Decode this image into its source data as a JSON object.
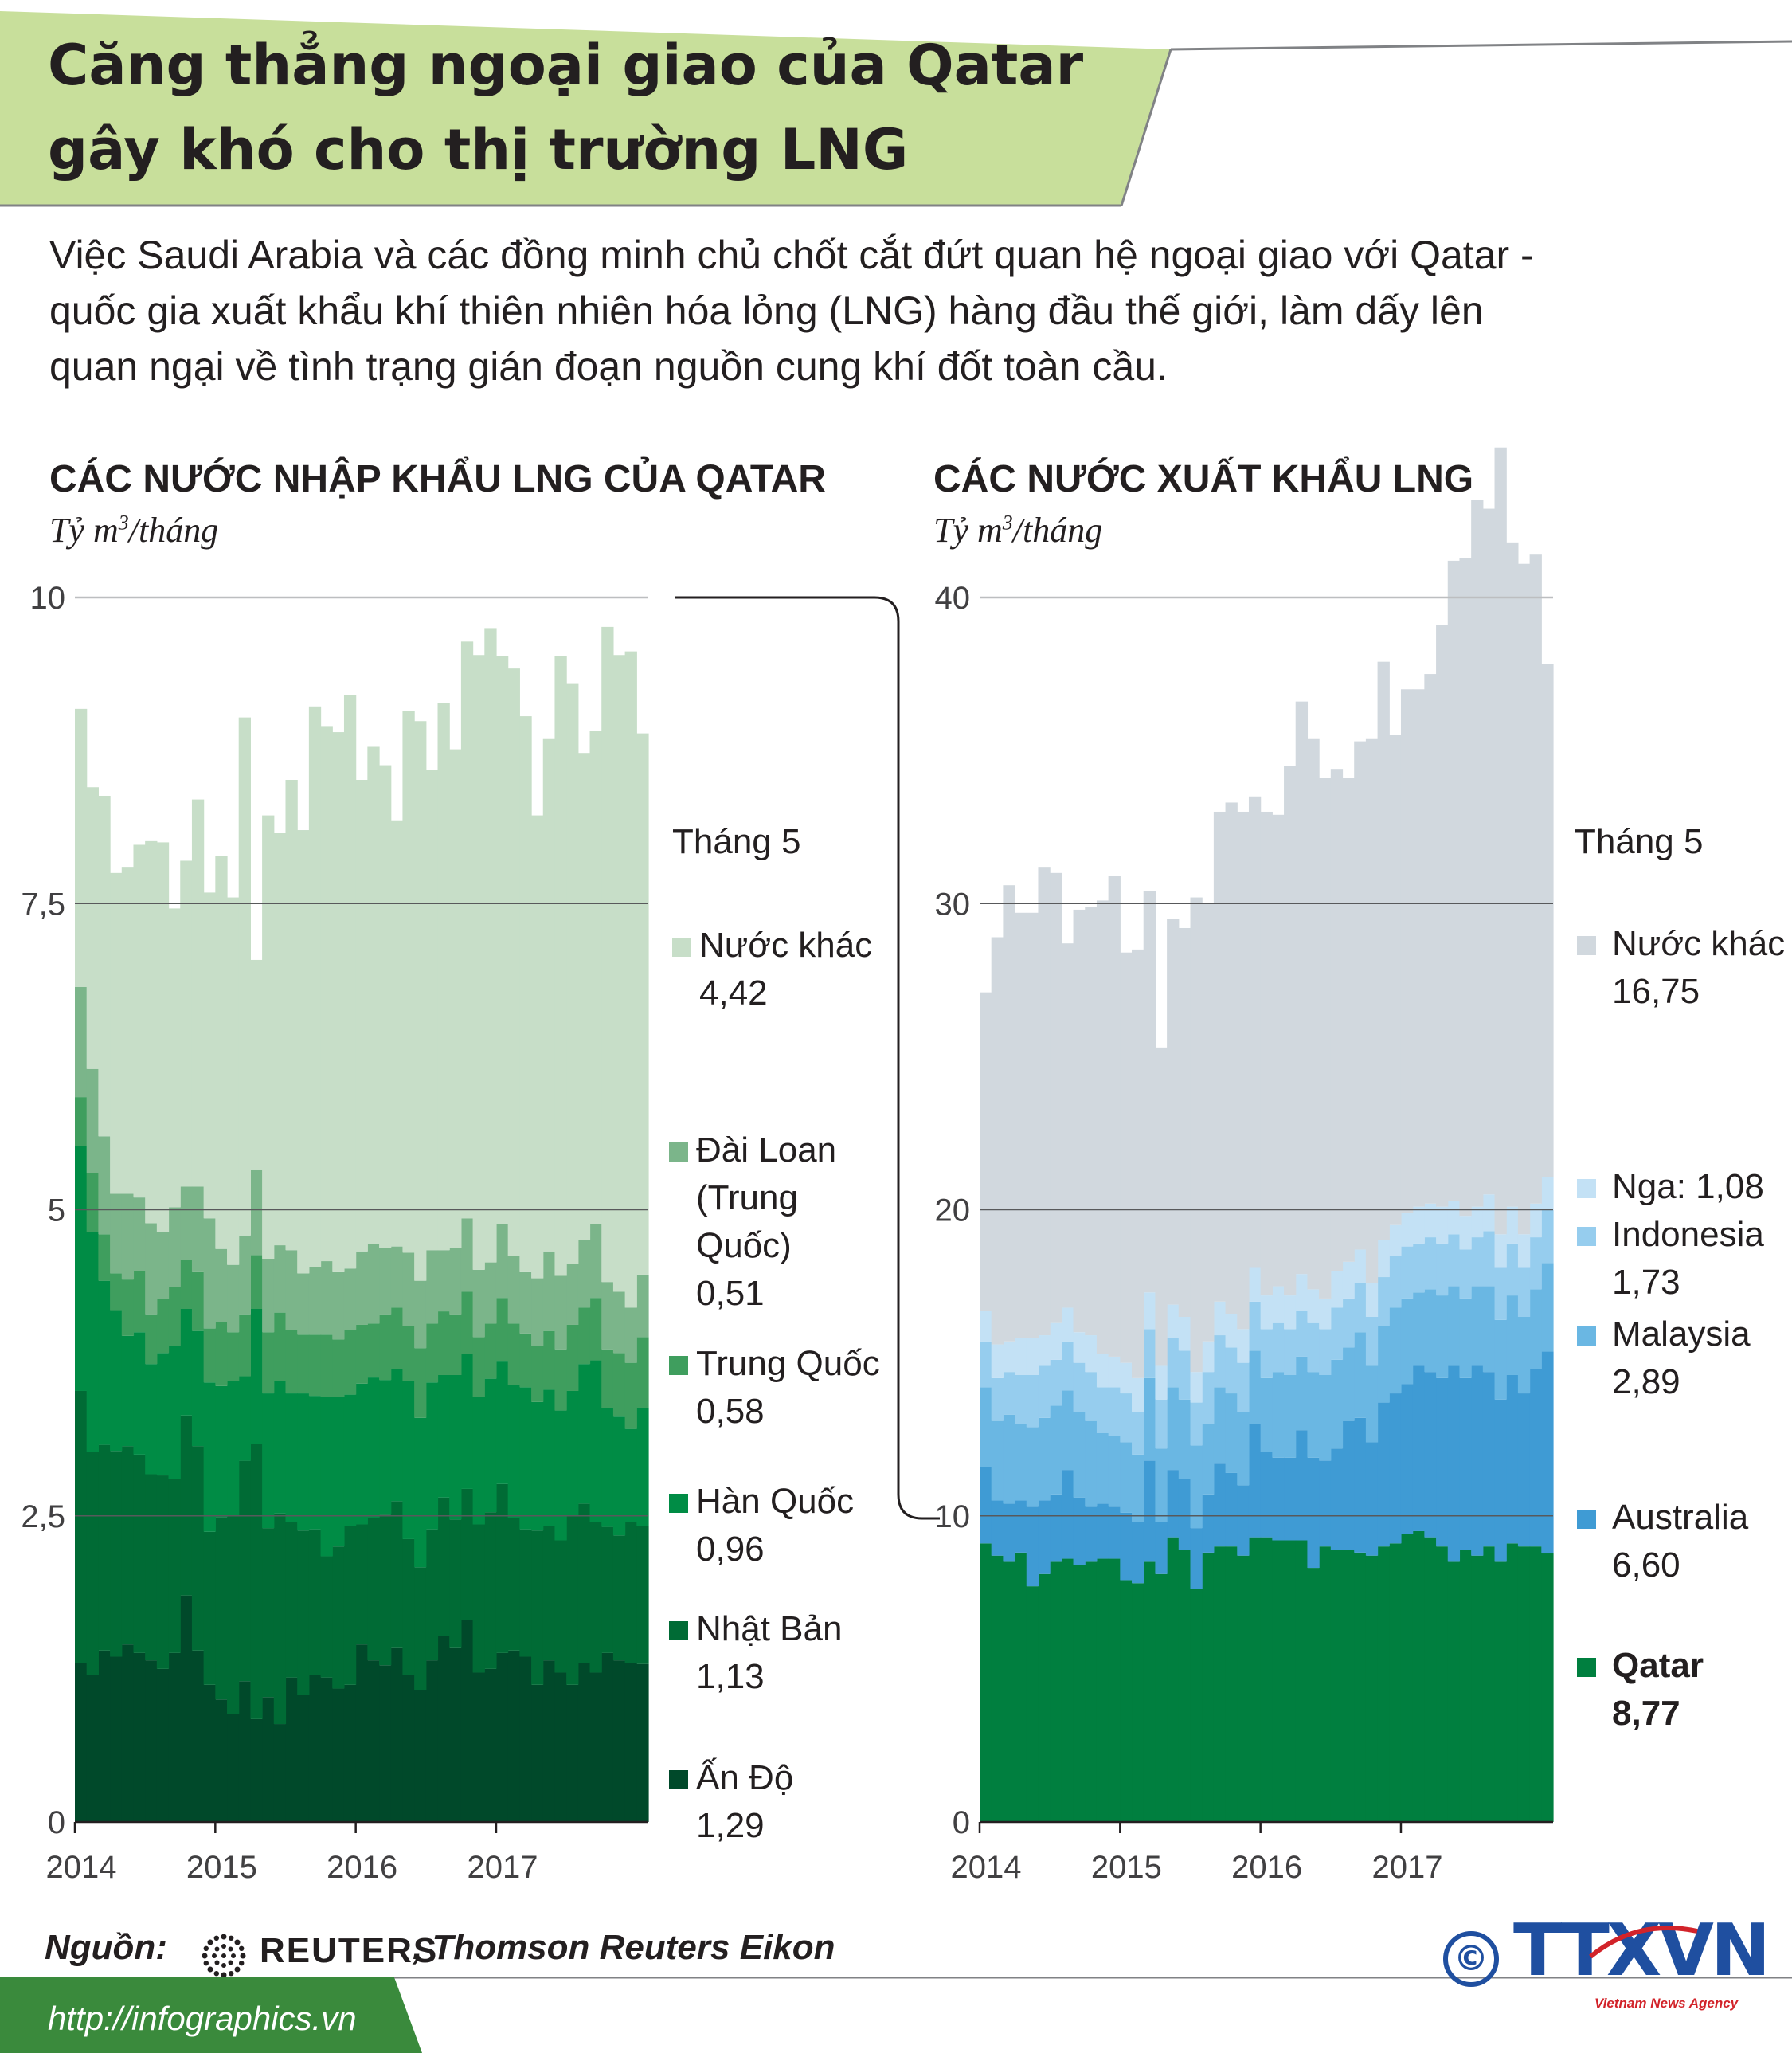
{
  "header": {
    "title_line1": "Căng thẳng ngoại giao của Qatar",
    "title_line2": "gây khó cho thị trường LNG",
    "green": "#c8df9b"
  },
  "intro": {
    "line1": "Việc Saudi Arabia và các đồng minh chủ chốt cắt đứt quan hệ ngoại giao với Qatar -",
    "line2": "quốc gia xuất khẩu khí thiên nhiên hóa lỏng (LNG) hàng đầu thế giới, làm dấy lên",
    "line3": "quan ngại về tình trạng gián đoạn nguồn cung khí đốt toàn cầu."
  },
  "chart_data": [
    {
      "type": "area",
      "title": "CÁC NƯỚC NHẬP KHẨU LNG CỦA QATAR",
      "subtitle": "Tỷ m³/tháng",
      "ylim": [
        0,
        10
      ],
      "yticks": [
        "0",
        "2,5",
        "5",
        "7,5",
        "10"
      ],
      "xticks": [
        "2014",
        "2015",
        "2016",
        "2017"
      ],
      "legend_heading": "Tháng 5",
      "months_start": "2014-01",
      "series": [
        {
          "name": "Ấn Độ",
          "value_label": "1,29",
          "color": "#00492a",
          "values": [
            1.3,
            1.2,
            1.4,
            1.35,
            1.45,
            1.38,
            1.32,
            1.25,
            1.38,
            1.85,
            1.4,
            1.12,
            1.0,
            0.88,
            1.15,
            0.84,
            1.02,
            0.8,
            1.18,
            1.04,
            1.2,
            1.18,
            1.09,
            1.12,
            1.45,
            1.32,
            1.28,
            1.42,
            1.2,
            1.08,
            1.32,
            1.52,
            1.42,
            1.65,
            1.22,
            1.25,
            1.38,
            1.4,
            1.35,
            1.12,
            1.32,
            1.22,
            1.12,
            1.3,
            1.22,
            1.38,
            1.32,
            1.3,
            1.29
          ]
        },
        {
          "name": "Nhật Bản",
          "value_label": "1,13",
          "color": "#006b35",
          "values": [
            2.22,
            1.82,
            1.68,
            1.68,
            1.62,
            1.62,
            1.52,
            1.58,
            1.42,
            1.47,
            1.67,
            1.25,
            1.49,
            1.62,
            1.8,
            2.25,
            1.38,
            1.72,
            1.27,
            1.34,
            1.19,
            0.99,
            1.16,
            1.3,
            0.98,
            1.16,
            1.23,
            1.2,
            1.11,
            1.0,
            1.07,
            1.13,
            1.05,
            1.07,
            1.21,
            1.28,
            1.38,
            1.08,
            1.04,
            1.26,
            1.1,
            1.08,
            1.38,
            1.3,
            1.23,
            1.03,
            1.02,
            1.15,
            1.13
          ]
        },
        {
          "name": "Hàn Quốc",
          "value_label": "0,96",
          "color": "#008c45",
          "values": [
            2.0,
            1.8,
            1.34,
            1.15,
            0.9,
            1.0,
            0.9,
            1.0,
            1.09,
            0.87,
            0.94,
            1.22,
            1.07,
            1.1,
            0.69,
            1.1,
            1.1,
            1.08,
            1.05,
            1.12,
            1.09,
            1.3,
            1.22,
            1.07,
            1.15,
            1.15,
            1.1,
            1.08,
            1.29,
            1.22,
            1.2,
            1.0,
            1.18,
            1.1,
            1.04,
            1.09,
            1.0,
            1.09,
            1.16,
            1.05,
            1.11,
            1.06,
            1.02,
            1.14,
            1.32,
            0.97,
            0.97,
            0.76,
            0.96
          ]
        },
        {
          "name": "Trung Quốc",
          "value_label": "0,58",
          "color": "#3f9e5e",
          "values": [
            0.4,
            0.48,
            0.38,
            0.3,
            0.46,
            0.5,
            0.4,
            0.44,
            0.48,
            0.4,
            0.48,
            0.44,
            0.52,
            0.4,
            0.5,
            0.44,
            0.5,
            0.56,
            0.52,
            0.48,
            0.5,
            0.51,
            0.47,
            0.53,
            0.48,
            0.44,
            0.53,
            0.5,
            0.45,
            0.57,
            0.48,
            0.52,
            0.49,
            0.51,
            0.49,
            0.45,
            0.52,
            0.5,
            0.44,
            0.46,
            0.48,
            0.5,
            0.54,
            0.46,
            0.51,
            0.48,
            0.52,
            0.54,
            0.58
          ]
        },
        {
          "name": "Đài Loan (Trung Quốc)",
          "value_label": "0,51",
          "color": "#7bb58a",
          "values": [
            0.9,
            0.85,
            0.8,
            0.65,
            0.7,
            0.6,
            0.75,
            0.55,
            0.65,
            0.6,
            0.7,
            0.9,
            0.6,
            0.55,
            0.65,
            0.7,
            0.6,
            0.55,
            0.65,
            0.5,
            0.55,
            0.6,
            0.55,
            0.5,
            0.6,
            0.65,
            0.55,
            0.5,
            0.6,
            0.55,
            0.6,
            0.5,
            0.55,
            0.6,
            0.55,
            0.5,
            0.6,
            0.55,
            0.5,
            0.55,
            0.65,
            0.6,
            0.5,
            0.55,
            0.6,
            0.55,
            0.5,
            0.45,
            0.51
          ]
        },
        {
          "name": "Nước khác",
          "value_label": "4,42",
          "color": "#c7dec8",
          "values": [
            2.27,
            2.3,
            2.78,
            2.62,
            2.67,
            2.88,
            3.12,
            3.18,
            2.44,
            2.66,
            3.16,
            2.66,
            3.21,
            3.0,
            4.23,
            1.71,
            3.62,
            3.37,
            3.84,
            3.62,
            4.58,
            4.37,
            4.41,
            4.68,
            3.85,
            4.06,
            3.94,
            3.48,
            4.42,
            4.57,
            3.92,
            4.47,
            4.07,
            4.71,
            5.02,
            5.18,
            4.64,
            4.8,
            4.54,
            3.78,
            4.19,
            5.06,
            4.74,
            3.98,
            4.03,
            5.35,
            5.2,
            5.36,
            4.42
          ]
        }
      ]
    },
    {
      "type": "area",
      "title": "CÁC NƯỚC XUẤT KHẨU LNG",
      "subtitle": "Tỷ m³/tháng",
      "ylim": [
        0,
        40
      ],
      "yticks": [
        "0",
        "10",
        "20",
        "30",
        "40"
      ],
      "xticks": [
        "2014",
        "2015",
        "2016",
        "2017"
      ],
      "legend_heading": "Tháng 5",
      "months_start": "2014-01",
      "series": [
        {
          "name": "Qatar",
          "value_label": "8,77",
          "color": "#007f3f",
          "values": [
            9.1,
            8.7,
            8.5,
            8.8,
            7.7,
            8.1,
            8.5,
            8.6,
            8.4,
            8.5,
            8.6,
            8.6,
            7.9,
            7.8,
            8.5,
            8.1,
            9.3,
            8.9,
            7.6,
            8.8,
            9.0,
            9.0,
            8.7,
            9.3,
            9.3,
            9.2,
            9.2,
            9.2,
            8.3,
            9.0,
            8.9,
            8.9,
            8.8,
            8.7,
            9.0,
            9.1,
            9.4,
            9.5,
            9.3,
            9.0,
            8.5,
            8.9,
            8.7,
            9.0,
            8.5,
            9.1,
            9.0,
            9.0,
            8.77
          ]
        },
        {
          "name": "Australia",
          "value_label": "6,60",
          "color": "#3f9bd4",
          "values": [
            2.5,
            1.8,
            1.9,
            1.7,
            2.6,
            2.4,
            2.2,
            2.9,
            2.2,
            1.8,
            1.8,
            1.7,
            2.2,
            2.0,
            3.3,
            1.7,
            2.2,
            2.3,
            2.0,
            1.9,
            2.7,
            2.4,
            2.3,
            3.7,
            2.8,
            2.7,
            2.7,
            3.6,
            3.6,
            2.8,
            3.3,
            4.2,
            4.4,
            3.7,
            4.7,
            4.9,
            4.9,
            5.4,
            5.4,
            5.5,
            6.4,
            5.6,
            6.2,
            5.7,
            5.3,
            5.5,
            5.0,
            5.8,
            6.6
          ]
        },
        {
          "name": "Malaysia",
          "value_label": "2,89",
          "color": "#6ab7e3",
          "values": [
            2.6,
            2.6,
            2.9,
            2.5,
            2.6,
            2.7,
            2.9,
            2.6,
            2.8,
            2.8,
            2.3,
            2.3,
            2.3,
            2.2,
            2.7,
            2.4,
            2.7,
            2.6,
            2.7,
            2.3,
            2.5,
            2.6,
            2.4,
            2.4,
            2.4,
            2.8,
            2.7,
            2.4,
            2.8,
            2.8,
            2.9,
            2.4,
            2.8,
            2.5,
            2.5,
            2.8,
            2.8,
            2.4,
            2.7,
            2.7,
            2.6,
            2.6,
            2.6,
            2.8,
            2.6,
            2.6,
            2.5,
            2.6,
            2.89
          ]
        },
        {
          "name": "Indonesia",
          "value_label": "1,73",
          "color": "#96cdee",
          "values": [
            1.5,
            1.4,
            1.4,
            1.6,
            1.7,
            1.7,
            1.5,
            1.6,
            1.6,
            1.6,
            1.5,
            1.6,
            1.6,
            1.4,
            1.6,
            1.6,
            1.6,
            1.6,
            1.4,
            1.7,
            1.7,
            1.5,
            1.6,
            1.6,
            1.6,
            1.6,
            1.5,
            1.5,
            1.6,
            1.5,
            1.7,
            1.6,
            1.6,
            1.6,
            1.6,
            1.7,
            1.7,
            1.6,
            1.7,
            1.7,
            1.7,
            1.6,
            1.6,
            1.8,
            1.7,
            1.7,
            1.6,
            1.7,
            1.73
          ]
        },
        {
          "name": "Nga",
          "value_label": "1,08",
          "color": "#c3e1f5",
          "values": [
            1.0,
            1.1,
            1.0,
            1.2,
            1.2,
            1.0,
            1.2,
            1.1,
            1.0,
            1.2,
            1.1,
            1.0,
            1.0,
            1.1,
            1.2,
            1.1,
            1.1,
            1.1,
            1.0,
            1.0,
            1.1,
            1.1,
            1.1,
            1.1,
            1.1,
            1.2,
            1.1,
            1.2,
            1.1,
            1.0,
            1.2,
            1.2,
            1.1,
            1.1,
            1.2,
            1.0,
            1.1,
            1.2,
            1.1,
            1.2,
            1.1,
            1.1,
            1.0,
            1.2,
            1.1,
            1.2,
            1.1,
            1.1,
            1.08
          ]
        },
        {
          "name": "Nước khác",
          "value_label": "16,75",
          "color": "#d1d8de",
          "values": [
            10.4,
            13.3,
            14.9,
            13.9,
            13.9,
            15.3,
            14.7,
            11.9,
            13.8,
            14.0,
            14.8,
            15.7,
            13.4,
            14.0,
            13.1,
            10.4,
            12.6,
            12.7,
            15.5,
            14.3,
            16.0,
            16.7,
            16.9,
            15.4,
            15.8,
            15.4,
            17.3,
            18.7,
            18.0,
            17.0,
            16.4,
            15.8,
            16.6,
            17.8,
            18.9,
            16.0,
            17.1,
            16.9,
            17.3,
            19.0,
            20.9,
            21.5,
            23.1,
            22.4,
            25.7,
            21.7,
            21.9,
            21.2,
            16.75
          ]
        }
      ]
    }
  ],
  "left_legend": {
    "heading": "Tháng 5",
    "others_label": "Nước khác",
    "others_value": "4,42",
    "taiwan_l1": "Đài Loan",
    "taiwan_l2": "(Trung",
    "taiwan_l3": "Quốc)",
    "taiwan_value": "0,51",
    "china_label": "Trung Quốc",
    "china_value": "0,58",
    "korea_label": "Hàn Quốc",
    "korea_value": "0,96",
    "japan_label": "Nhật Bản",
    "japan_value": "1,13",
    "india_label": "Ấn Độ",
    "india_value": "1,29"
  },
  "right_legend": {
    "heading": "Tháng 5",
    "others_label": "Nước khác",
    "others_value": "16,75",
    "russia_label": "Nga: 1,08",
    "indonesia_label": "Indonesia",
    "indonesia_value": "1,73",
    "malaysia_label": "Malaysia",
    "malaysia_value": "2,89",
    "australia_label": "Australia",
    "australia_value": "6,60",
    "qatar_label": "Qatar",
    "qatar_value": "8,77"
  },
  "footer": {
    "source_label": "Nguồn:",
    "reuters": "REUTERS",
    "source_rest": ", Thomson Reuters Eikon",
    "url": "http://infographics.vn",
    "copyright": "©",
    "agency_logo": "TTXVN",
    "agency_sub": "Vietnam News Agency",
    "footer_green": "#3a8a3c",
    "logo_blue": "#1f4fa0",
    "logo_red": "#d2232a"
  }
}
